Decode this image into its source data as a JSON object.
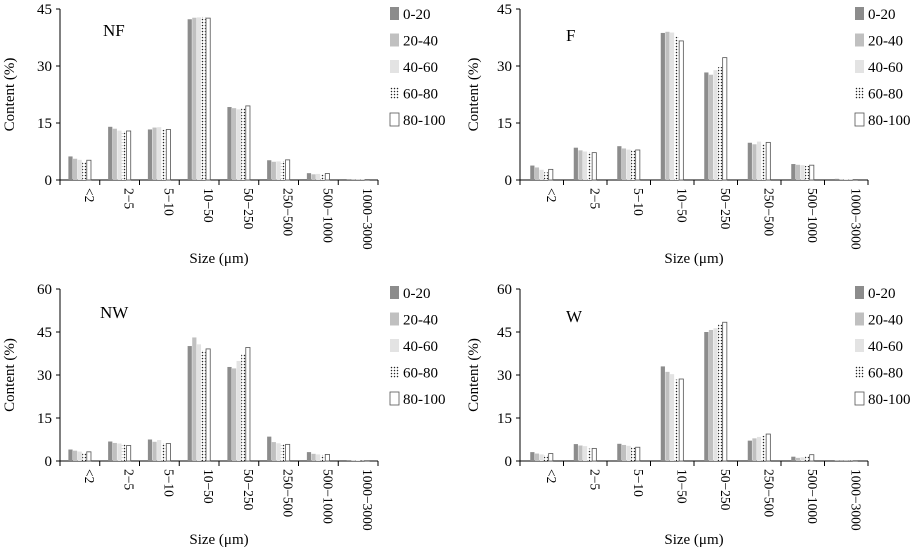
{
  "figure": {
    "series_styles": {
      "0-20": {
        "fill": "#8c8c8c",
        "stroke": "none",
        "pattern": false
      },
      "20-40": {
        "fill": "#c0c0c0",
        "stroke": "none",
        "pattern": false
      },
      "40-60": {
        "fill": "#e3e3e3",
        "stroke": "none",
        "pattern": false
      },
      "60-80": {
        "fill": "#ffffff",
        "stroke": "none",
        "pattern": true
      },
      "80-100": {
        "fill": "#ffffff",
        "stroke": "#555555",
        "pattern": false
      }
    }
  },
  "chart_data": [
    {
      "type": "bar",
      "title": "NF",
      "xlabel": "Size (μm)",
      "ylabel": "Content  (%)",
      "ylim": [
        0,
        45
      ],
      "yticks": [
        "0",
        "15",
        "30",
        "45"
      ],
      "legend_position": "right",
      "categories": [
        "<2",
        "2−5",
        "5−10",
        "10−50",
        "50−250",
        "250−500",
        "500−1000",
        "1000−3000"
      ],
      "series": [
        {
          "name": "0-20",
          "values": [
            6.2,
            14.0,
            13.3,
            42.3,
            19.2,
            5.2,
            1.8,
            0.2
          ]
        },
        {
          "name": "20-40",
          "values": [
            5.6,
            13.5,
            13.8,
            42.7,
            18.9,
            4.8,
            1.5,
            0.1
          ]
        },
        {
          "name": "40-60",
          "values": [
            5.3,
            13.0,
            13.9,
            42.8,
            18.6,
            4.9,
            1.6,
            0.1
          ]
        },
        {
          "name": "60-80",
          "values": [
            4.8,
            12.8,
            13.2,
            42.9,
            18.8,
            5.0,
            1.4,
            0.1
          ]
        },
        {
          "name": "80-100",
          "values": [
            5.2,
            12.9,
            13.3,
            42.6,
            19.5,
            5.3,
            1.7,
            0.1
          ]
        }
      ]
    },
    {
      "type": "bar",
      "title": "F",
      "xlabel": "Size (μm)",
      "ylabel": "Content  (%)",
      "ylim": [
        0,
        45
      ],
      "yticks": [
        "0",
        "15",
        "30",
        "45"
      ],
      "legend_position": "right",
      "categories": [
        "<2",
        "2−5",
        "5−10",
        "10−50",
        "50−250",
        "250−500",
        "500−1000",
        "1000−3000"
      ],
      "series": [
        {
          "name": "0-20",
          "values": [
            3.8,
            8.5,
            8.9,
            38.7,
            28.3,
            9.8,
            4.2,
            0.3
          ]
        },
        {
          "name": "20-40",
          "values": [
            3.3,
            7.8,
            8.3,
            39.0,
            27.7,
            9.4,
            4.0,
            0.2
          ]
        },
        {
          "name": "40-60",
          "values": [
            2.7,
            7.5,
            8.0,
            38.8,
            28.9,
            10.1,
            3.9,
            0.2
          ]
        },
        {
          "name": "60-80",
          "values": [
            2.0,
            7.3,
            7.8,
            37.7,
            29.7,
            9.6,
            3.7,
            0.1
          ]
        },
        {
          "name": "80-100",
          "values": [
            2.8,
            7.2,
            7.9,
            36.6,
            32.2,
            9.9,
            3.9,
            0.1
          ]
        }
      ]
    },
    {
      "type": "bar",
      "title": "NW",
      "xlabel": "Size (μm)",
      "ylabel": "Content  (%)",
      "ylim": [
        0,
        60
      ],
      "yticks": [
        "0",
        "15",
        "30",
        "45",
        "60"
      ],
      "legend_position": "right",
      "categories": [
        "<2",
        "2−5",
        "5−10",
        "10−50",
        "50−250",
        "250−500",
        "500−1000",
        "1000−3000"
      ],
      "series": [
        {
          "name": "0-20",
          "values": [
            4.0,
            6.8,
            7.5,
            40.1,
            32.8,
            8.5,
            3.1,
            0.3
          ]
        },
        {
          "name": "20-40",
          "values": [
            3.6,
            6.3,
            6.7,
            43.1,
            32.3,
            6.6,
            2.5,
            0.2
          ]
        },
        {
          "name": "40-60",
          "values": [
            3.3,
            6.1,
            7.3,
            40.7,
            34.9,
            6.2,
            2.3,
            0.2
          ]
        },
        {
          "name": "60-80",
          "values": [
            2.7,
            5.7,
            6.2,
            38.6,
            37.3,
            6.0,
            2.1,
            0.1
          ]
        },
        {
          "name": "80-100",
          "values": [
            3.2,
            5.4,
            6.1,
            39.1,
            39.6,
            5.8,
            2.3,
            0.1
          ]
        }
      ]
    },
    {
      "type": "bar",
      "title": "W",
      "xlabel": "Size (μm)",
      "ylabel": "Content  (%)",
      "ylim": [
        0,
        60
      ],
      "yticks": [
        "0",
        "15",
        "30",
        "45",
        "60"
      ],
      "legend_position": "right",
      "categories": [
        "<2",
        "2−5",
        "5−10",
        "10−50",
        "50−250",
        "250−500",
        "500−1000",
        "1000−3000"
      ],
      "series": [
        {
          "name": "0-20",
          "values": [
            3.1,
            5.9,
            6.0,
            33.0,
            45.0,
            7.1,
            1.5,
            0.2
          ]
        },
        {
          "name": "20-40",
          "values": [
            2.6,
            5.4,
            5.6,
            31.1,
            45.7,
            7.9,
            1.1,
            0.1
          ]
        },
        {
          "name": "40-60",
          "values": [
            2.3,
            5.2,
            5.3,
            30.3,
            46.3,
            8.4,
            1.3,
            0.1
          ]
        },
        {
          "name": "60-80",
          "values": [
            2.0,
            4.3,
            4.7,
            28.4,
            47.6,
            8.8,
            1.6,
            0.1
          ]
        },
        {
          "name": "80-100",
          "values": [
            2.6,
            4.4,
            4.8,
            28.6,
            48.4,
            9.4,
            2.2,
            0.1
          ]
        }
      ]
    }
  ]
}
